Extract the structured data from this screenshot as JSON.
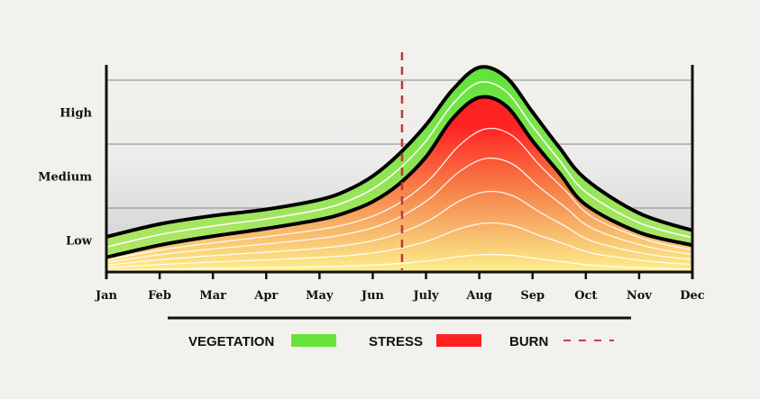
{
  "chart_data": {
    "type": "area",
    "title": "",
    "xlabel": "",
    "ylabel": "",
    "categories": [
      "Jan",
      "Feb",
      "Mar",
      "Apr",
      "May",
      "Jun",
      "July",
      "Aug",
      "Sep",
      "Oct",
      "Nov",
      "Dec"
    ],
    "y_levels": [
      "Low",
      "Medium",
      "High"
    ],
    "ylim": [
      0,
      3.3
    ],
    "gridlines": [
      1,
      2,
      3
    ],
    "series": [
      {
        "name": "VEGETATION",
        "color": "#66e33a",
        "x": [
          0,
          1,
          2,
          3,
          4,
          4.5,
          5,
          5.5,
          6,
          6.5,
          7,
          7.5,
          8,
          8.5,
          9,
          10,
          11
        ],
        "values": [
          0.55,
          0.75,
          0.88,
          0.98,
          1.13,
          1.27,
          1.5,
          1.85,
          2.3,
          2.85,
          3.2,
          3.05,
          2.5,
          1.95,
          1.45,
          0.92,
          0.65
        ]
      },
      {
        "name": "STRESS",
        "color": "#ff2020",
        "x": [
          0,
          1,
          2,
          3,
          4,
          4.5,
          5,
          5.5,
          6,
          6.5,
          7,
          7.5,
          8,
          8.5,
          9,
          10,
          11
        ],
        "values": [
          0.23,
          0.42,
          0.56,
          0.68,
          0.82,
          0.93,
          1.1,
          1.38,
          1.8,
          2.4,
          2.73,
          2.6,
          2.05,
          1.55,
          1.05,
          0.62,
          0.42
        ]
      }
    ],
    "burn": {
      "name": "BURN",
      "x": 5.55,
      "color": "#b83a3a"
    },
    "legend": [
      {
        "label": "VEGETATION",
        "color": "#66e33a",
        "kind": "swatch"
      },
      {
        "label": "STRESS",
        "color": "#ff2020",
        "kind": "swatch"
      },
      {
        "label": "BURN",
        "color": "#c94040",
        "kind": "dashed"
      }
    ],
    "legend_position": "bottom"
  }
}
